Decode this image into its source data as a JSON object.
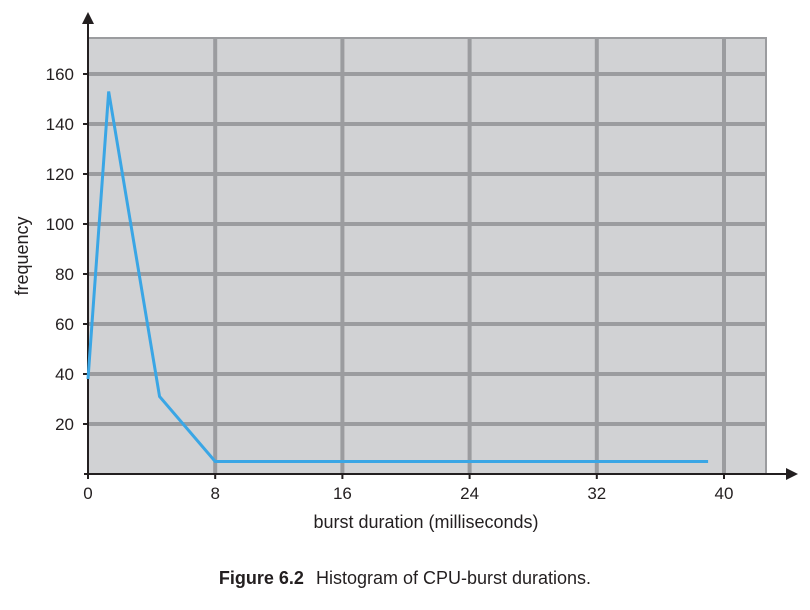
{
  "chart_data": {
    "type": "line",
    "xlabel": "burst duration (milliseconds)",
    "ylabel": "frequency",
    "xlim": [
      0,
      43
    ],
    "ylim": [
      0,
      175
    ],
    "x_ticks": [
      0,
      8,
      16,
      24,
      32,
      40
    ],
    "y_ticks": [
      20,
      40,
      60,
      80,
      100,
      120,
      140,
      160
    ],
    "grid": true,
    "legend": "none",
    "series": [
      {
        "points": [
          [
            0,
            38
          ],
          [
            1.3,
            153
          ],
          [
            4.5,
            31
          ],
          [
            8,
            5
          ],
          [
            16,
            5
          ],
          [
            24,
            5
          ],
          [
            32,
            5
          ],
          [
            39,
            5
          ]
        ]
      }
    ]
  },
  "caption": {
    "number": "Figure 6.2",
    "text": "Histogram of CPU-burst durations."
  },
  "colors": {
    "plot_background": "#d1d2d4",
    "grid": "#9b9c9f",
    "line": "#3aa6e5",
    "axis": "#231f20"
  }
}
